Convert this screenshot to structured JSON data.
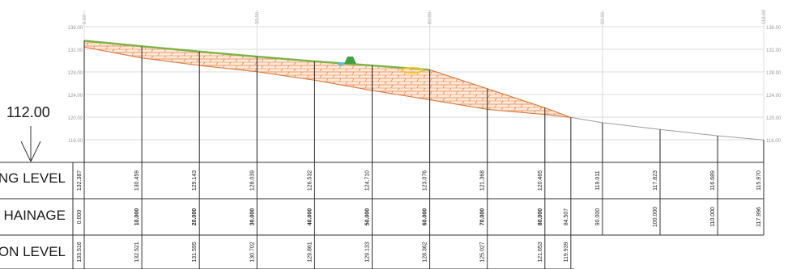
{
  "datum": {
    "label": "112.00",
    "value": 112.0
  },
  "top_scale": {
    "chainages": [
      0,
      30,
      60,
      90,
      118
    ],
    "labels": [
      "0.00",
      "30.00",
      "60.00",
      "90.00",
      "118.00"
    ]
  },
  "elevation_axis": {
    "values": [
      136,
      132,
      128,
      124,
      120,
      116
    ],
    "labels": [
      "136.00",
      "132.00",
      "128.00",
      "124.00",
      "120.00",
      "116.00"
    ]
  },
  "rows": {
    "existing": {
      "label": "NG LEVEL"
    },
    "chainage": {
      "label": "HAINAGE"
    },
    "formation": {
      "label": "ON LEVEL"
    }
  },
  "chart_data": {
    "type": "line",
    "xlabel": "",
    "ylabel": "",
    "xlim": [
      0,
      118
    ],
    "ylim": [
      112,
      136
    ],
    "stations": [
      {
        "ch": 0,
        "ch_label": "0.000",
        "ng": 132.387,
        "ng_label": "132.387",
        "fl": 133.516,
        "fl_label": "133.516"
      },
      {
        "ch": 10,
        "ch_label": "10.000",
        "ng": 130.459,
        "ng_label": "130.459",
        "fl": 132.521,
        "fl_label": "132.521"
      },
      {
        "ch": 20,
        "ch_label": "20.000",
        "ng": 129.143,
        "ng_label": "129.143",
        "fl": 131.595,
        "fl_label": "131.595"
      },
      {
        "ch": 30,
        "ch_label": "30.000",
        "ng": 128.039,
        "ng_label": "128.039",
        "fl": 130.702,
        "fl_label": "130.702"
      },
      {
        "ch": 40,
        "ch_label": "40.000",
        "ng": 126.532,
        "ng_label": "126.532",
        "fl": 129.861,
        "fl_label": "129.861"
      },
      {
        "ch": 50,
        "ch_label": "50.000",
        "ng": 124.71,
        "ng_label": "124.710",
        "fl": 129.133,
        "fl_label": "129.133"
      },
      {
        "ch": 60,
        "ch_label": "60.000",
        "ng": 123.076,
        "ng_label": "123.076",
        "fl": 128.362,
        "fl_label": "128.362"
      },
      {
        "ch": 70,
        "ch_label": "70.000",
        "ng": 121.368,
        "ng_label": "121.368",
        "fl": 125.027,
        "fl_label": "125.027"
      },
      {
        "ch": 80,
        "ch_label": "80.000",
        "ng": 120.465,
        "ng_label": "120.465",
        "fl": 121.653,
        "fl_label": "121.653"
      },
      {
        "ch": 84.507,
        "ch_label": "84.507",
        "ng": 119.939,
        "ng_label": "",
        "fl": 119.939,
        "fl_label": "119.939"
      },
      {
        "ch": 90,
        "ch_label": "90.000",
        "ng": 119.011,
        "ng_label": "119.011",
        "fl": null,
        "fl_label": ""
      },
      {
        "ch": 100,
        "ch_label": "100.000",
        "ng": 117.823,
        "ng_label": "117.823",
        "fl": null,
        "fl_label": ""
      },
      {
        "ch": 110,
        "ch_label": "110.000",
        "ng": 116.689,
        "ng_label": "116.689",
        "fl": null,
        "fl_label": ""
      },
      {
        "ch": 117.996,
        "ch_label": "117.996",
        "ng": 115.97,
        "ng_label": "115.970",
        "fl": null,
        "fl_label": ""
      }
    ],
    "colors": {
      "formation": "#7cb342",
      "fill_hatch": "#e07b39",
      "ground": "#9e9e9e",
      "grid": "#dcdcdc",
      "ordinate": "#222222"
    }
  }
}
